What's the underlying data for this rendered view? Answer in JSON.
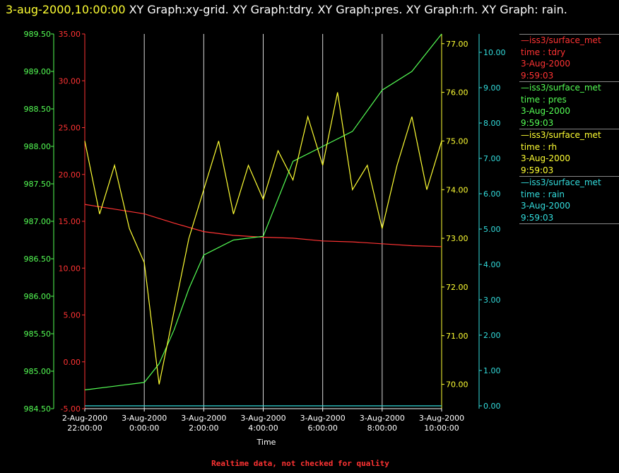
{
  "header": {
    "timestamp": "3-aug-2000,10:00:00",
    "title": " XY Graph:xy-grid.  XY Graph:tdry.  XY Graph:pres.  XY Graph:rh.  XY Graph: rain."
  },
  "colors": {
    "tdry": "#ff3333",
    "pres": "#55ff55",
    "rh": "#ffff33",
    "rain": "#33dddd",
    "grid": "#ffffff"
  },
  "legend": [
    {
      "line": "—iss3/surface_met",
      "field": "time : tdry",
      "date": "3-Aug-2000",
      "time": "9:59:03",
      "color": "#ff3333"
    },
    {
      "line": "—iss3/surface_met",
      "field": "time : pres",
      "date": "3-Aug-2000",
      "time": "9:59:03",
      "color": "#55ff55"
    },
    {
      "line": "—iss3/surface_met",
      "field": "time : rh",
      "date": "3-Aug-2000",
      "time": "9:59:03",
      "color": "#ffff33"
    },
    {
      "line": "—iss3/surface_met",
      "field": "time : rain",
      "date": "3-Aug-2000",
      "time": "9:59:03",
      "color": "#33dddd"
    }
  ],
  "footer": "Realtime data, not checked for quality",
  "chart_data": {
    "type": "line",
    "xlabel": "Time",
    "x_ticks": [
      {
        "date": "2-Aug-2000",
        "time": "22:00:00"
      },
      {
        "date": "3-Aug-2000",
        "time": "0:00:00"
      },
      {
        "date": "3-Aug-2000",
        "time": "2:00:00"
      },
      {
        "date": "3-Aug-2000",
        "time": "4:00:00"
      },
      {
        "date": "3-Aug-2000",
        "time": "6:00:00"
      },
      {
        "date": "3-Aug-2000",
        "time": "8:00:00"
      },
      {
        "date": "3-Aug-2000",
        "time": "10:00:00"
      }
    ],
    "x_range": [
      "2-Aug-2000 22:00:00",
      "3-Aug-2000 10:00:00"
    ],
    "grid": "vertical",
    "axes": {
      "pres": {
        "side": "left",
        "range": [
          984.5,
          989.5
        ],
        "ticks": [
          "984.50",
          "985.00",
          "985.50",
          "986.00",
          "986.50",
          "987.00",
          "987.50",
          "988.00",
          "988.50",
          "989.00",
          "989.50"
        ]
      },
      "tdry": {
        "side": "left",
        "range": [
          -5,
          35
        ],
        "ticks": [
          "-5.00",
          "0.00",
          "5.00",
          "10.00",
          "15.00",
          "20.00",
          "25.00",
          "30.00",
          "35.00"
        ]
      },
      "rh": {
        "side": "right",
        "range": [
          69.5,
          77.2
        ],
        "ticks": [
          "70.00",
          "71.00",
          "72.00",
          "73.00",
          "74.00",
          "75.00",
          "76.00",
          "77.00"
        ]
      },
      "rain": {
        "side": "right",
        "range": [
          0,
          10.0
        ],
        "ticks": [
          "0.00",
          "1.00",
          "2.00",
          "3.00",
          "4.00",
          "5.00",
          "6.00",
          "7.00",
          "8.00",
          "9.00",
          "10.00"
        ]
      }
    },
    "series": [
      {
        "name": "time : tdry",
        "axis": "tdry",
        "x": [
          "2-Aug-2000 22:00",
          "2-Aug-2000 23:00",
          "3-Aug-2000 0:00",
          "3-Aug-2000 1:00",
          "3-Aug-2000 2:00",
          "3-Aug-2000 3:00",
          "3-Aug-2000 4:00",
          "3-Aug-2000 5:00",
          "3-Aug-2000 6:00",
          "3-Aug-2000 7:00",
          "3-Aug-2000 8:00",
          "3-Aug-2000 9:00",
          "3-Aug-2000 10:00"
        ],
        "y": [
          16.8,
          16.3,
          15.8,
          14.8,
          13.9,
          13.5,
          13.3,
          13.2,
          12.9,
          12.8,
          12.6,
          12.4,
          12.3
        ]
      },
      {
        "name": "time : pres",
        "axis": "pres",
        "x": [
          "2-Aug-2000 22:00",
          "2-Aug-2000 23:00",
          "3-Aug-2000 0:00",
          "3-Aug-2000 0:30",
          "3-Aug-2000 1:00",
          "3-Aug-2000 1:30",
          "3-Aug-2000 2:00",
          "3-Aug-2000 3:00",
          "3-Aug-2000 4:00",
          "3-Aug-2000 5:00",
          "3-Aug-2000 6:00",
          "3-Aug-2000 7:00",
          "3-Aug-2000 8:00",
          "3-Aug-2000 9:00",
          "3-Aug-2000 10:00"
        ],
        "y": [
          984.75,
          984.8,
          984.85,
          985.1,
          985.55,
          986.1,
          986.55,
          986.75,
          986.8,
          987.8,
          988.0,
          988.2,
          988.75,
          989.0,
          989.5
        ]
      },
      {
        "name": "time : rh",
        "axis": "rh",
        "x": [
          "2-Aug-2000 22:00",
          "2-Aug-2000 22:30",
          "2-Aug-2000 23:00",
          "2-Aug-2000 23:30",
          "3-Aug-2000 0:00",
          "3-Aug-2000 0:30",
          "3-Aug-2000 1:00",
          "3-Aug-2000 1:30",
          "3-Aug-2000 2:00",
          "3-Aug-2000 2:30",
          "3-Aug-2000 3:00",
          "3-Aug-2000 3:30",
          "3-Aug-2000 4:00",
          "3-Aug-2000 4:30",
          "3-Aug-2000 5:00",
          "3-Aug-2000 5:30",
          "3-Aug-2000 6:00",
          "3-Aug-2000 6:30",
          "3-Aug-2000 7:00",
          "3-Aug-2000 7:30",
          "3-Aug-2000 8:00",
          "3-Aug-2000 8:30",
          "3-Aug-2000 9:00",
          "3-Aug-2000 9:30",
          "3-Aug-2000 10:00"
        ],
        "y": [
          75.0,
          73.5,
          74.5,
          73.2,
          72.5,
          70.0,
          71.5,
          73.0,
          74.0,
          75.0,
          73.5,
          74.5,
          73.8,
          74.8,
          74.2,
          75.5,
          74.5,
          76.0,
          74.0,
          74.5,
          73.2,
          74.5,
          75.5,
          74.0,
          75.0
        ]
      },
      {
        "name": "time : rain",
        "axis": "rain",
        "x": [
          "2-Aug-2000 22:00",
          "3-Aug-2000 10:00"
        ],
        "y": [
          0.0,
          0.0
        ]
      }
    ]
  }
}
